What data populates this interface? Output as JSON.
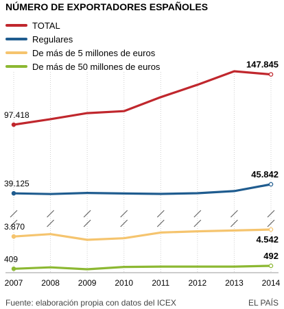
{
  "header": {
    "title": "NÚMERO DE EXPORTADORES ESPAÑOLES"
  },
  "footer": {
    "source": "Fuente: elaboración propia con datos del ICEX",
    "brand": "EL PAÍS"
  },
  "chart_data": {
    "type": "line",
    "title": "NÚMERO DE EXPORTADORES ESPAÑOLES",
    "xlabel": "",
    "ylabel": "",
    "x": [
      "2007",
      "2008",
      "2009",
      "2010",
      "2011",
      "2012",
      "2013",
      "2014"
    ],
    "grid": true,
    "legend_position": "top-left",
    "axis_break": true,
    "series": [
      {
        "name": "TOTAL",
        "color": "#c0272d",
        "values": [
          97418,
          103000,
          109000,
          111000,
          125000,
          137500,
          151000,
          147845
        ],
        "start_label": "97.418",
        "end_label": "147.845"
      },
      {
        "name": "Regulares",
        "color": "#1f5c8f",
        "values": [
          39125,
          38600,
          39400,
          39000,
          38700,
          39200,
          40800,
          45842
        ],
        "start_label": "39.125",
        "end_label": "45.842"
      },
      {
        "name": "De más de 5 millones de euros",
        "color": "#f5c46e",
        "values": [
          3870,
          4100,
          3550,
          3700,
          4250,
          4370,
          4450,
          4542
        ],
        "start_label": "3.870",
        "end_label": "4.542"
      },
      {
        "name": "De más de 50 millones de euros",
        "color": "#8cb832",
        "values": [
          409,
          450,
          395,
          460,
          470,
          470,
          470,
          492
        ],
        "start_label": "409",
        "end_label": "492"
      }
    ]
  }
}
